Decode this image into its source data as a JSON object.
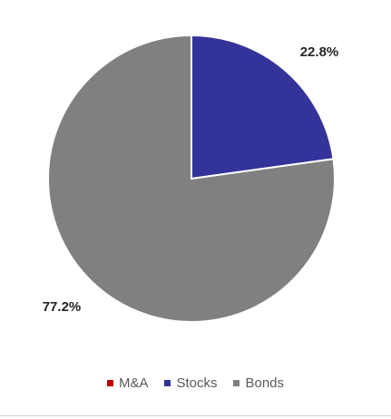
{
  "chart_data": {
    "type": "pie",
    "title": "",
    "series": [
      {
        "name": "M&A",
        "value": 0,
        "color": "#c00000",
        "label": ""
      },
      {
        "name": "Stocks",
        "value": 22.8,
        "color": "#333399",
        "label": "22.8%"
      },
      {
        "name": "Bonds",
        "value": 77.2,
        "color": "#808080",
        "label": "77.2%"
      }
    ],
    "start_angle_deg": 0,
    "direction": "clockwise",
    "legend_position": "bottom"
  }
}
